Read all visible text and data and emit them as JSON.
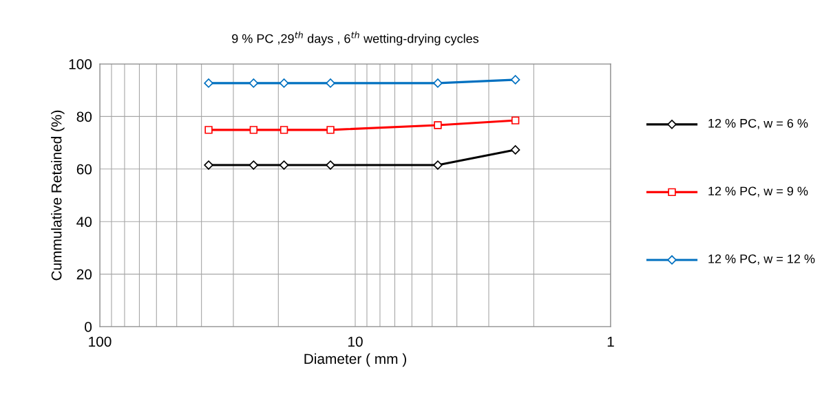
{
  "chart_data": {
    "type": "line",
    "title": "9 % PC ,29$^{th}$ days , 6$^{th}$ wetting-drying cycles",
    "xlabel": "Diameter ( mm )",
    "ylabel": "Cummulative Retained (%)",
    "x": [
      37.5,
      25,
      19,
      12.5,
      4.75,
      2.36
    ],
    "series": [
      {
        "name": "12 % PC, w = 6 %",
        "color": "#000000",
        "marker": "diamond",
        "values": [
          61.5,
          61.5,
          61.5,
          61.5,
          61.5,
          67.3
        ]
      },
      {
        "name": "12 % PC, w = 9 %",
        "color": "#ff0000",
        "marker": "square",
        "values": [
          74.9,
          74.9,
          74.9,
          74.9,
          76.7,
          78.5
        ]
      },
      {
        "name": "12 % PC, w = 12 %",
        "color": "#0070c0",
        "marker": "diamond",
        "values": [
          92.7,
          92.7,
          92.7,
          92.7,
          92.7,
          94.0
        ]
      }
    ],
    "log": "x",
    "xlim": [
      100,
      1
    ],
    "xticks": [
      100,
      10,
      1
    ],
    "ylim": [
      0,
      100
    ],
    "yticks": [
      0,
      20,
      40,
      60,
      80,
      100
    ],
    "grid": true,
    "legend": "right",
    "line_style": "solid"
  }
}
